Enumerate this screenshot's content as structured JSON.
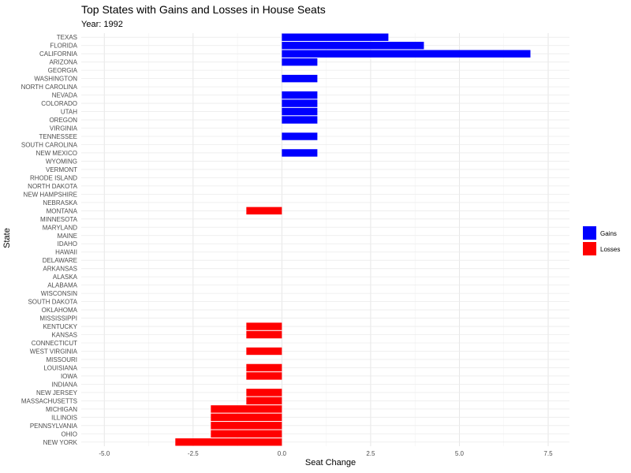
{
  "chart_data": {
    "type": "bar",
    "orientation": "horizontal",
    "title": "Top States with Gains and Losses in House Seats",
    "subtitle": "Year: 1992",
    "xlabel": "Seat Change",
    "ylabel": "State",
    "xlim": [
      -5.0,
      7.5
    ],
    "x_ticks": [
      "-5.0",
      "-2.5",
      "0.0",
      "2.5",
      "5.0",
      "7.5"
    ],
    "grid": true,
    "legend_position": "right",
    "legend": [
      {
        "label": "Gains",
        "color": "#0000ff"
      },
      {
        "label": "Losses",
        "color": "#ff0000"
      }
    ],
    "categories": [
      "TEXAS",
      "FLORIDA",
      "CALIFORNIA",
      "ARIZONA",
      "GEORGIA",
      "WASHINGTON",
      "NORTH CAROLINA",
      "NEVADA",
      "COLORADO",
      "UTAH",
      "OREGON",
      "VIRGINIA",
      "TENNESSEE",
      "SOUTH CAROLINA",
      "NEW MEXICO",
      "WYOMING",
      "VERMONT",
      "RHODE ISLAND",
      "NORTH DAKOTA",
      "NEW HAMPSHIRE",
      "NEBRASKA",
      "MONTANA",
      "MINNESOTA",
      "MARYLAND",
      "MAINE",
      "IDAHO",
      "HAWAII",
      "DELAWARE",
      "ARKANSAS",
      "ALASKA",
      "ALABAMA",
      "WISCONSIN",
      "SOUTH DAKOTA",
      "OKLAHOMA",
      "MISSISSIPPI",
      "KENTUCKY",
      "KANSAS",
      "CONNECTICUT",
      "WEST VIRGINIA",
      "MISSOURI",
      "LOUISIANA",
      "IOWA",
      "INDIANA",
      "NEW JERSEY",
      "MASSACHUSETTS",
      "MICHIGAN",
      "ILLINOIS",
      "PENNSYLVANIA",
      "OHIO",
      "NEW YORK"
    ],
    "values": [
      3,
      4,
      7,
      1,
      0,
      1,
      0,
      1,
      1,
      1,
      1,
      0,
      1,
      0,
      1,
      0,
      0,
      0,
      0,
      0,
      0,
      -1,
      0,
      0,
      0,
      0,
      0,
      0,
      0,
      0,
      0,
      0,
      0,
      0,
      0,
      -1,
      -1,
      0,
      -1,
      0,
      -1,
      -1,
      0,
      -1,
      -1,
      -2,
      -2,
      -2,
      -2,
      -3
    ]
  }
}
